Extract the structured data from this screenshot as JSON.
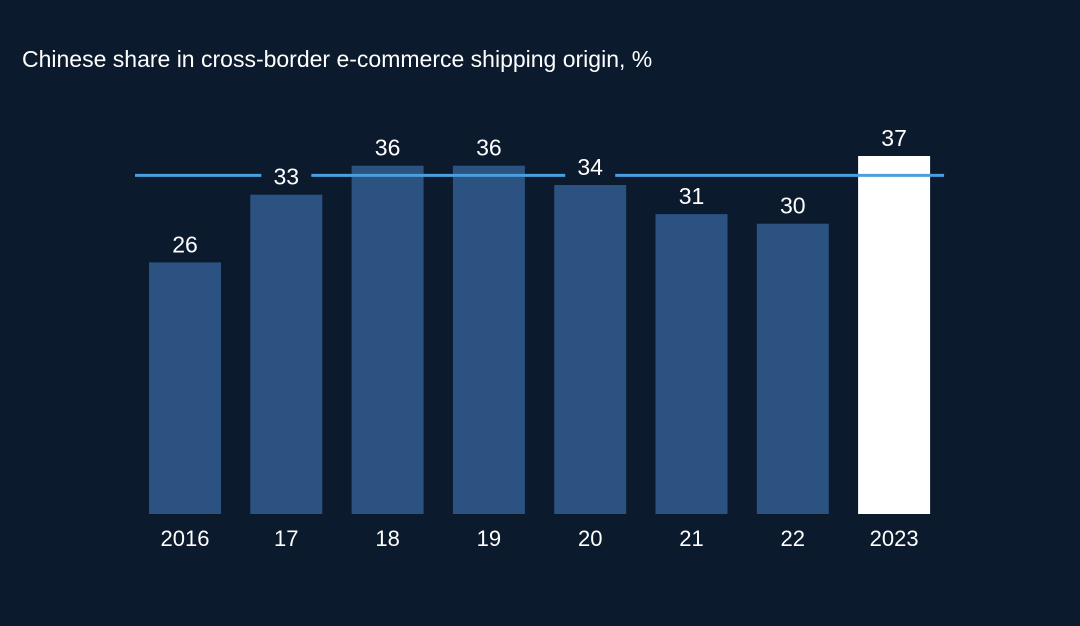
{
  "chart_data": {
    "type": "bar",
    "title": "Chinese share in cross-border e-commerce shipping origin, %",
    "categories": [
      "2016",
      "17",
      "18",
      "19",
      "20",
      "21",
      "22",
      "2023"
    ],
    "values": [
      26,
      33,
      36,
      36,
      34,
      31,
      30,
      37
    ],
    "ylim": [
      0,
      37
    ],
    "grid": false,
    "legend": "none",
    "highlight_category": "2023",
    "reference_line": 35,
    "colors": {
      "background": "#0b1a2c",
      "bar": "#2c5282",
      "highlight_bar": "#ffffff",
      "reference_line": "#4a9fde",
      "text": "#ffffff"
    }
  }
}
